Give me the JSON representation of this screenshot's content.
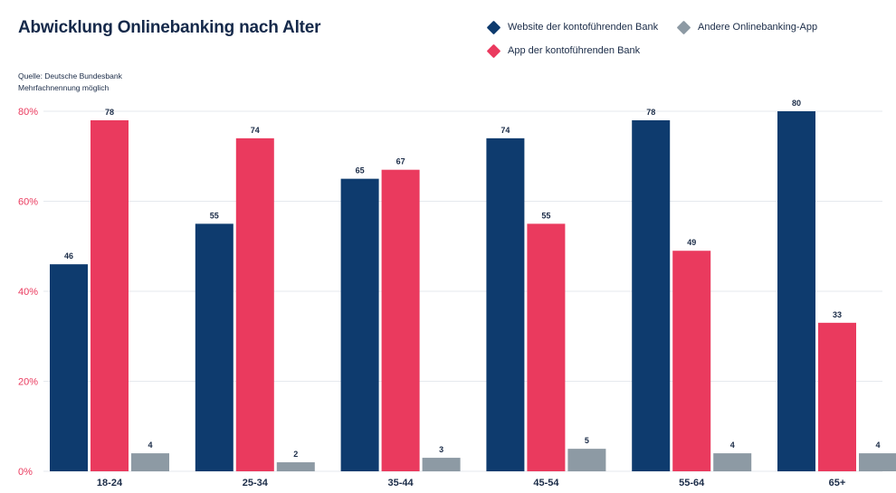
{
  "header": {
    "title": "Abwicklung Onlinebanking nach Alter",
    "source_line1": "Quelle: Deutsche Bundesbank",
    "source_line2": "Mehrfachnennung möglich"
  },
  "colors": {
    "website": "#0e3b6e",
    "app": "#ea3a5e",
    "other": "#8d9aa4",
    "axis_label": "#ea3a5e",
    "grid": "#e6e9ee"
  },
  "chart_data": {
    "type": "bar",
    "title": "Abwicklung Onlinebanking nach Alter",
    "xlabel": "",
    "ylabel": "",
    "ylim": [
      0,
      80
    ],
    "yticks": [
      "0%",
      "20%",
      "40%",
      "60%",
      "80%"
    ],
    "ytick_values": [
      0,
      20,
      40,
      60,
      80
    ],
    "grid": true,
    "legend_position": "top-right",
    "categories": [
      "18-24",
      "25-34",
      "35-44",
      "45-54",
      "55-64",
      "65+"
    ],
    "series": [
      {
        "name": "Website der kontoführenden Bank",
        "color": "#0e3b6e",
        "values": [
          46,
          55,
          65,
          74,
          78,
          80
        ],
        "labels": [
          "46",
          "55",
          "65",
          "74",
          "78",
          "80"
        ]
      },
      {
        "name": "App der kontoführenden Bank",
        "color": "#ea3a5e",
        "values": [
          78,
          74,
          67,
          55,
          49,
          33
        ],
        "labels": [
          "78",
          "74",
          "67",
          "55",
          "49",
          "33"
        ]
      },
      {
        "name": "Andere Onlinebanking-App",
        "color": "#8d9aa4",
        "values": [
          4,
          2,
          3,
          5,
          4,
          4
        ],
        "labels": [
          "4",
          "2",
          "3",
          "5",
          "4",
          "4"
        ]
      }
    ]
  }
}
